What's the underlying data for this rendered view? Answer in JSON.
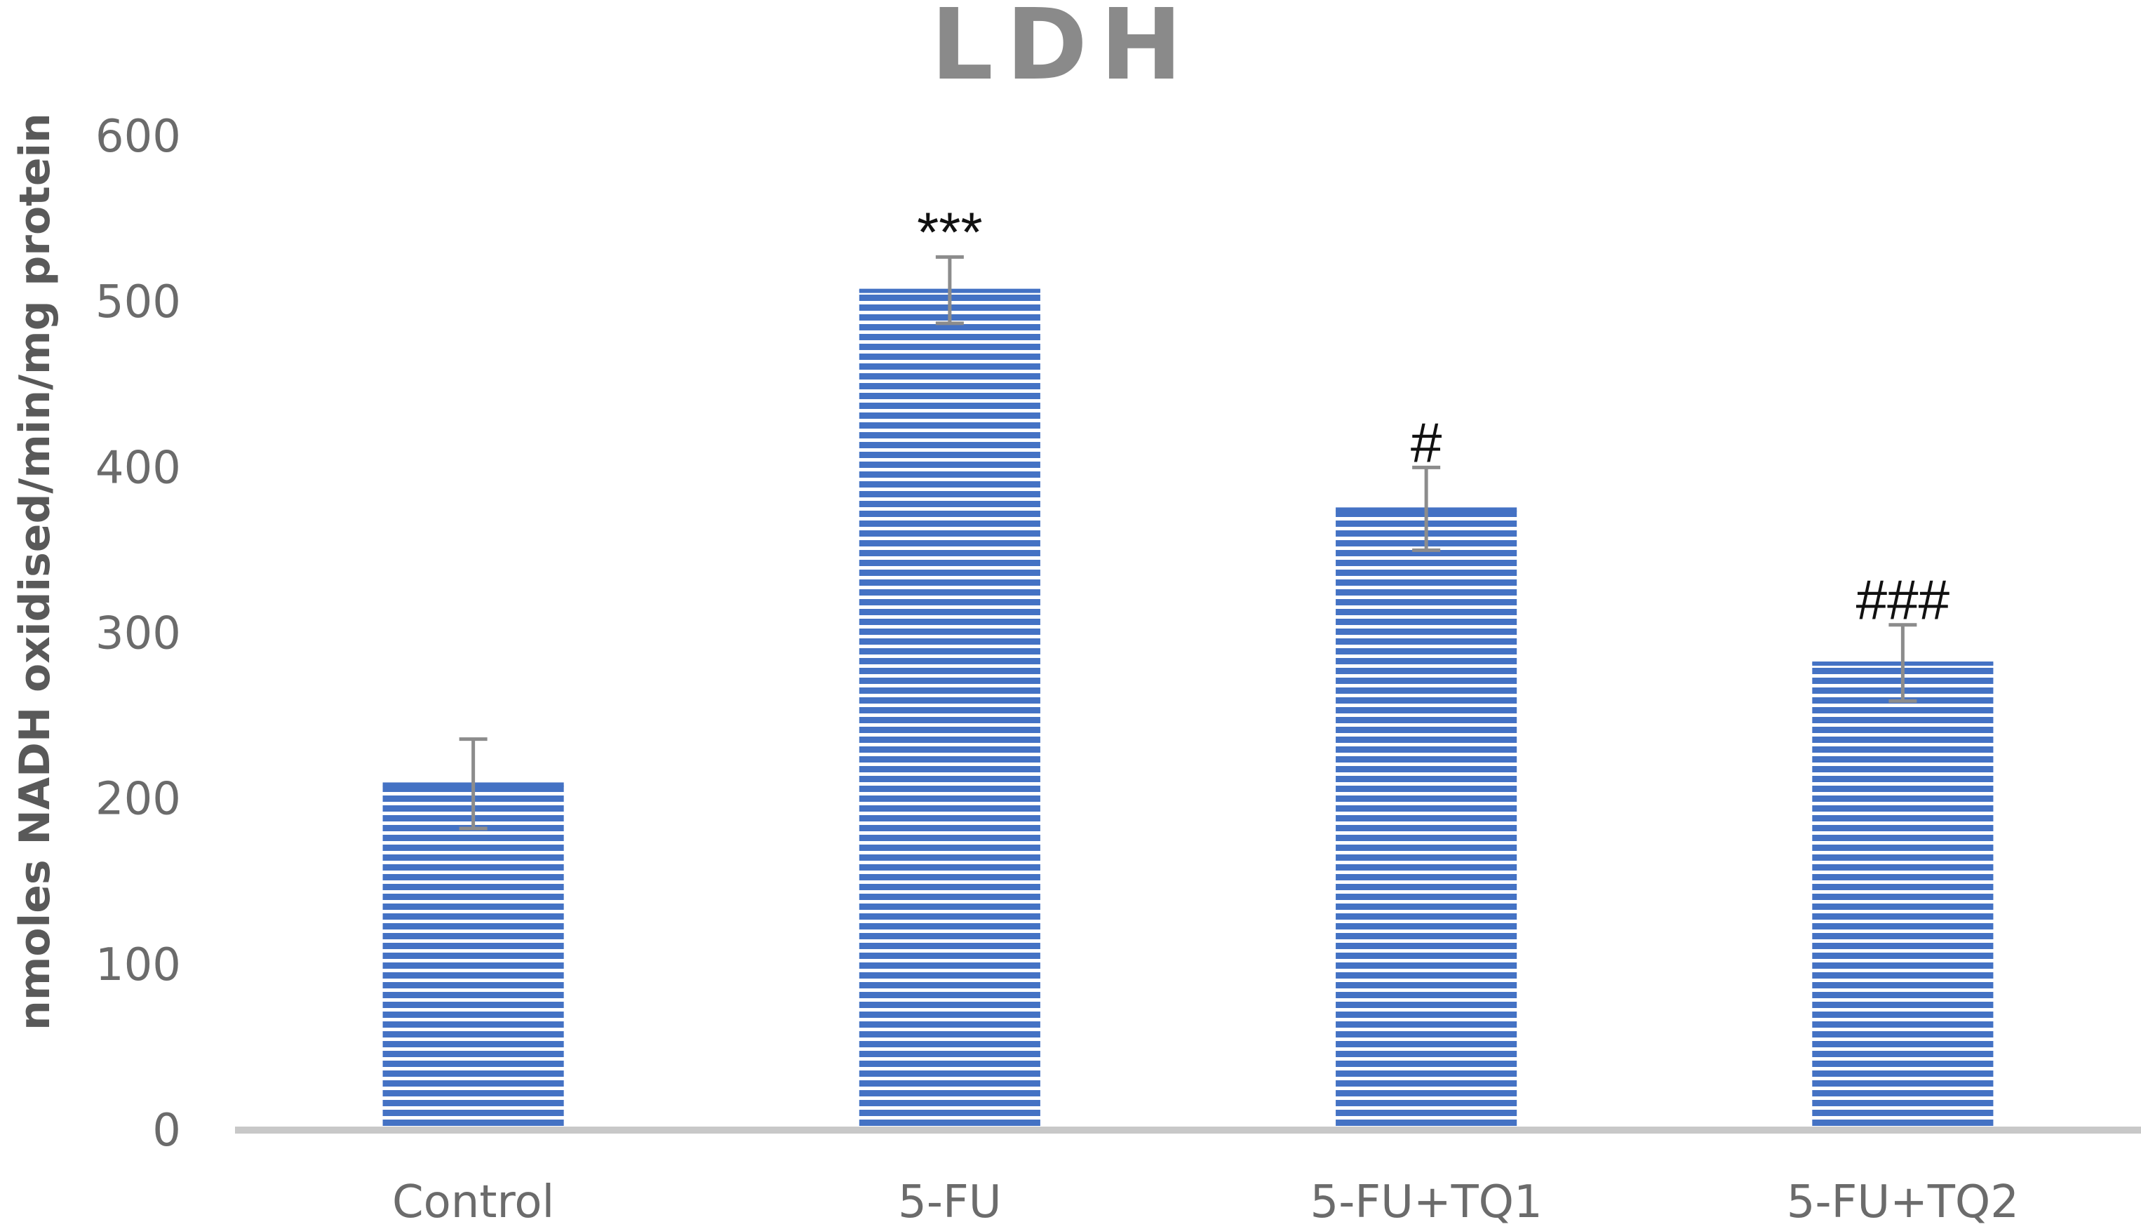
{
  "chart_data": {
    "type": "bar",
    "title": "LDH",
    "xlabel": "",
    "ylabel": "nmoles NADH oxidised/min/mg protein",
    "categories": [
      "Control",
      "5-FU",
      "5-FU+TQ1",
      "5-FU+TQ2"
    ],
    "values": [
      209,
      507,
      375,
      282
    ],
    "error": [
      27,
      20,
      25,
      23
    ],
    "annotations": [
      "",
      "***",
      "#",
      "###"
    ],
    "ylim": [
      0,
      600
    ],
    "yticks": [
      0,
      100,
      200,
      300,
      400,
      500,
      600
    ],
    "grid": false,
    "legend": "none",
    "colors": {
      "bar": "#4472c4",
      "bar_stripe": "#ffffff",
      "error_bar": "#8c8c8c",
      "axis": "#c8c8c8",
      "text": "#6b6b6b"
    }
  }
}
